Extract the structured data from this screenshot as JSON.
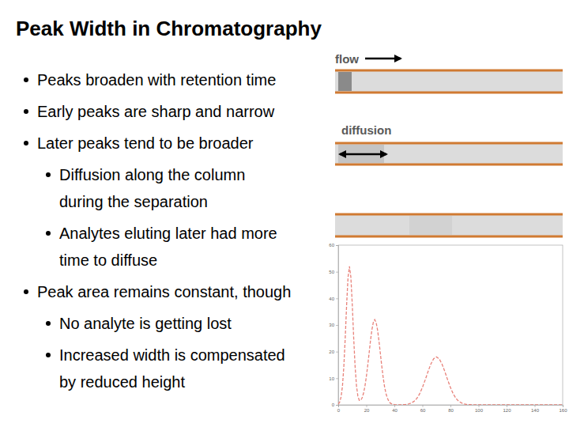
{
  "slide": {
    "title": "Peak Width in Chromatography",
    "bullets": [
      {
        "lines": [
          "Peaks broaden with retention time"
        ]
      },
      {
        "lines": [
          "Early peaks are sharp and narrow"
        ]
      },
      {
        "lines": [
          "Later peaks tend to be broader"
        ],
        "sub": [
          {
            "lines": [
              "Diffusion along the column",
              "during the separation"
            ]
          },
          {
            "lines": [
              "Analytes eluting later had more",
              "time to diffuse"
            ]
          }
        ]
      },
      {
        "lines": [
          "Peak area remains constant, though"
        ],
        "sub": [
          {
            "lines": [
              "No analyte is getting lost"
            ]
          },
          {
            "lines": [
              "Increased width is compensated",
              "by reduced height"
            ]
          }
        ]
      }
    ]
  },
  "diagram": {
    "flow_label": "flow",
    "diffusion_label": "diffusion"
  },
  "chart_data": {
    "type": "line",
    "x": [
      0,
      1,
      2,
      3,
      4,
      5,
      6,
      7,
      8,
      9,
      10,
      11,
      12,
      13,
      14,
      15,
      16,
      17,
      18,
      19,
      20,
      21,
      22,
      23,
      24,
      25,
      26,
      27,
      28,
      29,
      30,
      31,
      32,
      33,
      34,
      35,
      36,
      37,
      38,
      39,
      40,
      42,
      44,
      46,
      48,
      50,
      52,
      54,
      56,
      58,
      60,
      62,
      64,
      66,
      68,
      70,
      72,
      74,
      76,
      78,
      80,
      82,
      84,
      86,
      88,
      90,
      92,
      94,
      96,
      100,
      120,
      140,
      160
    ],
    "series": [
      {
        "color": "#e8827a",
        "line_style": "dashed",
        "values": [
          0.3,
          1.0,
          2.9,
          7.0,
          14.5,
          25.3,
          37.8,
          48.0,
          52,
          48.0,
          37.8,
          25.3,
          14.6,
          7.2,
          3.3,
          1.7,
          1.7,
          2.6,
          4.3,
          6.9,
          10.4,
          14.7,
          19.4,
          24.2,
          28.2,
          31.0,
          32,
          31.0,
          28.2,
          24.2,
          19.4,
          14.7,
          10.4,
          6.9,
          4.3,
          2.6,
          1.4,
          0.7,
          0.4,
          0.2,
          0.1,
          0,
          0,
          0.1,
          0.1,
          0.3,
          0.7,
          1.3,
          2.4,
          4.1,
          6.5,
          9.4,
          12.5,
          15.3,
          17.3,
          18,
          17.3,
          15.3,
          12.5,
          9.4,
          6.5,
          4.1,
          2.4,
          1.3,
          0.7,
          0.3,
          0.1,
          0.1,
          0,
          0,
          0,
          0,
          0
        ]
      }
    ],
    "xlim": [
      0,
      160
    ],
    "ylim": [
      0,
      60
    ],
    "xticks": [
      0,
      20,
      40,
      60,
      80,
      100,
      120,
      140,
      160
    ],
    "yticks": [
      0,
      10,
      20,
      30,
      40,
      50,
      60
    ],
    "grid": false
  }
}
